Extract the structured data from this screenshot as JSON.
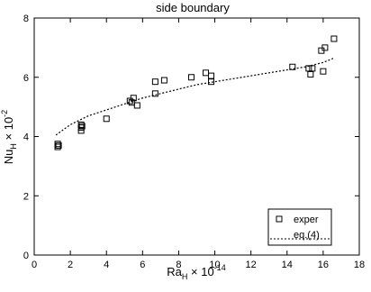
{
  "chart_data": {
    "type": "scatter",
    "title": "side boundary",
    "x_label": {
      "base": "Ra",
      "sub": "H",
      "times": " × 10",
      "sup": "-14"
    },
    "y_label": {
      "base": "Nu",
      "sub": "H",
      "times": " × 10",
      "sup": "-2"
    },
    "xlim": [
      0,
      18
    ],
    "xticks": [
      0,
      2,
      4,
      6,
      8,
      10,
      12,
      14,
      16,
      18
    ],
    "ylim": [
      0,
      8
    ],
    "yticks": [
      0,
      2,
      4,
      6,
      8
    ],
    "legend": "lower right",
    "series": [
      {
        "name": "exper",
        "color": "#000000",
        "marker": "square",
        "x": [
          1.3,
          1.3,
          1.35,
          2.6,
          2.6,
          2.6,
          2.65,
          4.0,
          5.3,
          5.5,
          5.7,
          5.4,
          6.7,
          6.7,
          7.2,
          8.7,
          9.5,
          9.8,
          9.8,
          14.3,
          15.2,
          15.3,
          15.4,
          15.9,
          16.1,
          16.0,
          16.6
        ],
        "values": [
          3.75,
          3.65,
          3.7,
          4.4,
          4.3,
          4.2,
          4.35,
          4.6,
          5.2,
          5.3,
          5.05,
          5.15,
          5.85,
          5.45,
          5.9,
          6.0,
          6.15,
          6.05,
          5.85,
          6.35,
          6.3,
          6.1,
          6.3,
          6.9,
          7.0,
          6.2,
          7.3
        ]
      },
      {
        "name": "eq.(4)",
        "color": "#000000",
        "marker": "dotted-line",
        "x": [
          1.2,
          2,
          3,
          4,
          5,
          6,
          7,
          8,
          9,
          10,
          11,
          12,
          13,
          14,
          15,
          16,
          16.6
        ],
        "values": [
          4.05,
          4.4,
          4.7,
          4.9,
          5.1,
          5.3,
          5.45,
          5.6,
          5.75,
          5.85,
          5.95,
          6.05,
          6.15,
          6.25,
          6.35,
          6.5,
          6.65
        ]
      }
    ]
  }
}
